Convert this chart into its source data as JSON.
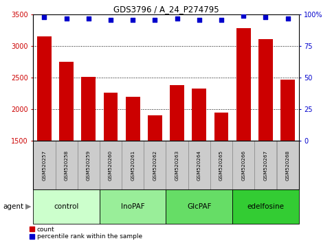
{
  "title": "GDS3796 / A_24_P274795",
  "samples": [
    "GSM520257",
    "GSM520258",
    "GSM520259",
    "GSM520260",
    "GSM520261",
    "GSM520262",
    "GSM520263",
    "GSM520264",
    "GSM520265",
    "GSM520266",
    "GSM520267",
    "GSM520268"
  ],
  "bar_values": [
    3160,
    2750,
    2510,
    2260,
    2200,
    1910,
    2380,
    2330,
    1950,
    3290,
    3110,
    2470
  ],
  "dot_values": [
    98,
    97,
    97,
    96,
    96,
    96,
    97,
    96,
    96,
    99,
    98,
    97
  ],
  "ylim_left": [
    1500,
    3500
  ],
  "ylim_right": [
    0,
    100
  ],
  "yticks_left": [
    1500,
    2000,
    2500,
    3000,
    3500
  ],
  "yticks_right": [
    0,
    25,
    50,
    75,
    100
  ],
  "bar_color": "#cc0000",
  "dot_color": "#0000cc",
  "grid_color": "#000000",
  "groups": [
    {
      "label": "control",
      "start": 0,
      "end": 3,
      "color": "#ccffcc"
    },
    {
      "label": "InoPAF",
      "start": 3,
      "end": 6,
      "color": "#99ee99"
    },
    {
      "label": "GlcPAF",
      "start": 6,
      "end": 9,
      "color": "#66dd66"
    },
    {
      "label": "edelfosine",
      "start": 9,
      "end": 12,
      "color": "#33cc33"
    }
  ],
  "agent_label": "agent",
  "legend_count_label": "count",
  "legend_pct_label": "percentile rank within the sample",
  "tick_bg_color": "#cccccc",
  "bar_bottom": 1500
}
